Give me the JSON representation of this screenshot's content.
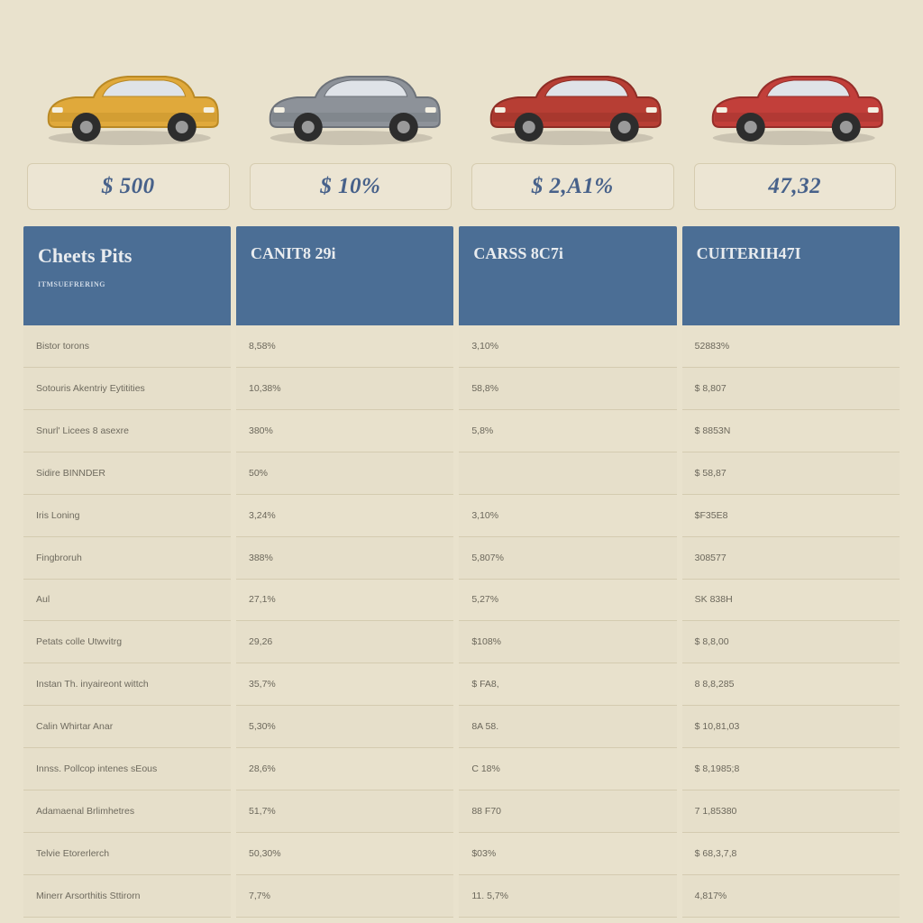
{
  "colors": {
    "page_bg": "#e9e2cd",
    "badge_bg": "#ece5d3",
    "badge_border": "#d6ccb0",
    "badge_text": "#47618a",
    "header_bg": "#4b6e95",
    "header_text": "#e9ecef",
    "cell_bg": "#e6dfca",
    "cell_border": "#d4cbb0",
    "cell_text": "#6b675b"
  },
  "cars": [
    {
      "id": "car-yellow-suv",
      "body_color": "#e0a93b",
      "accent": "#b98925"
    },
    {
      "id": "car-gray-sedan",
      "body_color": "#8d9299",
      "accent": "#6d7279"
    },
    {
      "id": "car-red-muscle",
      "body_color": "#b73e34",
      "accent": "#8d2d25"
    },
    {
      "id": "car-red-compact",
      "body_color": "#c23f3a",
      "accent": "#962e2a"
    }
  ],
  "price_badges": [
    "$ 500",
    "$ 10%",
    "$ 2,A1%",
    "47,32"
  ],
  "table": {
    "columns": [
      {
        "title": "Cheets Pits",
        "sub": "ITMSUEFRERING"
      },
      {
        "title": "CANIT8 29i",
        "sub": ""
      },
      {
        "title": "CARSS 8C7i",
        "sub": ""
      },
      {
        "title": "CUITERIH47I",
        "sub": ""
      }
    ],
    "rows": [
      {
        "label": "Bistor torons",
        "cells": [
          "8,58%",
          "3,10%",
          "52883%"
        ]
      },
      {
        "label": "Sotouris Akentriy Eytitities",
        "cells": [
          "10,38%",
          "58,8%",
          "$ 8,807"
        ]
      },
      {
        "label": "Snurl' Licees 8 asexre",
        "cells": [
          "380%",
          "5,8%",
          "$ 8853N"
        ]
      },
      {
        "label": "Sidire BINNDER",
        "cells": [
          "50%",
          "",
          "$ 58,87"
        ]
      },
      {
        "label": "Iris Loning",
        "cells": [
          "3,24%",
          "3,10%",
          "$F35E8"
        ]
      },
      {
        "label": "Fingbroruh",
        "cells": [
          "388%",
          "5,807%",
          "308577"
        ]
      },
      {
        "label": "Aul",
        "cells": [
          "27,1%",
          "5,27%",
          "SK 838H"
        ]
      },
      {
        "label": "Petats colle Utwvitrg",
        "cells": [
          "29,26",
          "$108%",
          "$ 8,8,00"
        ]
      },
      {
        "label": "Instan Th. inyaireont wittch",
        "cells": [
          "35,7%",
          "$ FA8,",
          "8 8,8,285"
        ]
      },
      {
        "label": "Calin Whirtar Anar",
        "cells": [
          "5,30%",
          "8A 58.",
          "$ 10,81,03"
        ]
      },
      {
        "label": "Innss. Pollcop intenes sEous",
        "cells": [
          "28,6%",
          "C 18%",
          "$ 8,1985;8"
        ]
      },
      {
        "label": "Adamaenal Brlimhetres",
        "cells": [
          "51,7%",
          "88 F70",
          "7 1,85380"
        ]
      },
      {
        "label": "Telvie Etorerlerch",
        "cells": [
          "50,30%",
          "$03%",
          "$ 68,3,7,8"
        ]
      },
      {
        "label": "Minerr Arsorthitis Sttirorn",
        "cells": [
          "7,7%",
          "11. 5,7%",
          "4,817%"
        ]
      }
    ]
  }
}
